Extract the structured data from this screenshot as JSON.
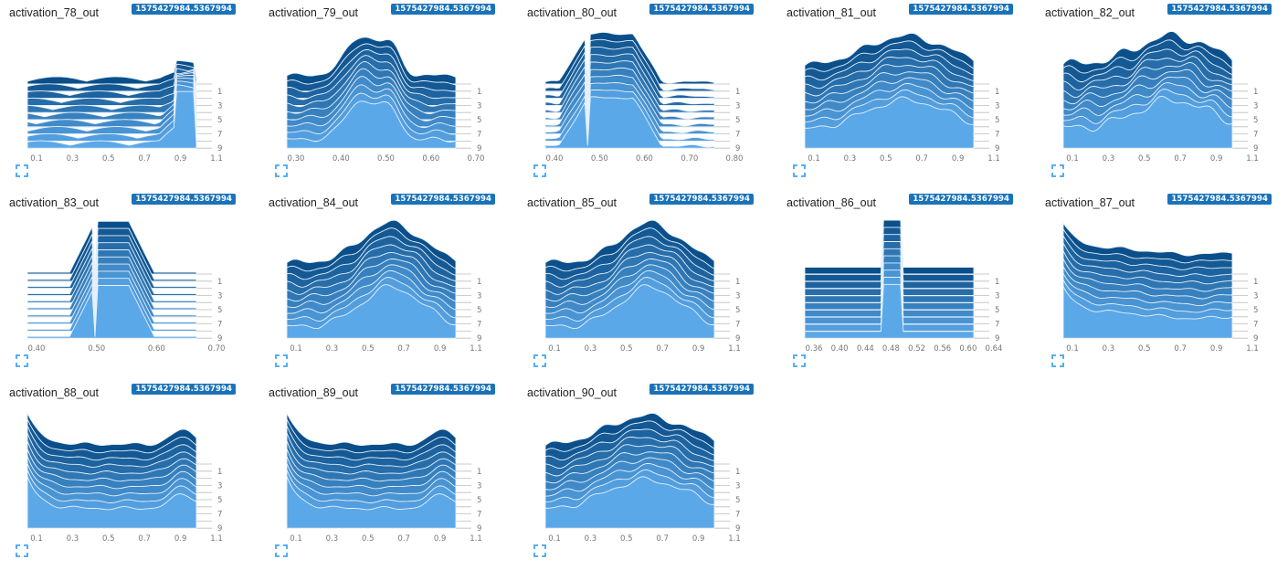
{
  "run_label": "1575427984.5367994",
  "colors": {
    "back": "#0b4f8a",
    "front": "#5ba8e8",
    "stroke": "#e6f0fa",
    "axis": "#9e9e9e",
    "badge": "#1a73b8",
    "expand_icon": "#42a5f5"
  },
  "depth_ticks": [
    "1",
    "3",
    "5",
    "7",
    "9"
  ],
  "icons": {
    "expand": "expand-icon"
  },
  "cards": [
    {
      "title": "activation_78_out",
      "xticks": [
        "0.1",
        "0.3",
        "0.5",
        "0.7",
        "0.9",
        "1.1"
      ],
      "chart_data": {
        "type": "area",
        "shape": "right-peak"
      }
    },
    {
      "title": "activation_79_out",
      "xticks": [
        "0.30",
        "0.40",
        "0.50",
        "0.60",
        "0.70"
      ],
      "chart_data": {
        "type": "area",
        "shape": "center-double"
      }
    },
    {
      "title": "activation_80_out",
      "xticks": [
        "0.40",
        "0.50",
        "0.60",
        "0.70",
        "0.80"
      ],
      "chart_data": {
        "type": "area",
        "shape": "plateau-left"
      }
    },
    {
      "title": "activation_81_out",
      "xticks": [
        "0.1",
        "0.3",
        "0.5",
        "0.7",
        "0.9",
        "1.1"
      ],
      "chart_data": {
        "type": "area",
        "shape": "broad-hump"
      }
    },
    {
      "title": "activation_82_out",
      "xticks": [
        "0.1",
        "0.3",
        "0.5",
        "0.7",
        "0.9",
        "1.1"
      ],
      "chart_data": {
        "type": "area",
        "shape": "noisy-hump"
      }
    },
    {
      "title": "activation_83_out",
      "xticks": [
        "0.40",
        "0.50",
        "0.60",
        "0.70"
      ],
      "chart_data": {
        "type": "area",
        "shape": "narrow-plateau"
      }
    },
    {
      "title": "activation_84_out",
      "xticks": [
        "0.1",
        "0.3",
        "0.5",
        "0.7",
        "0.9",
        "1.1"
      ],
      "chart_data": {
        "type": "area",
        "shape": "right-hump"
      }
    },
    {
      "title": "activation_85_out",
      "xticks": [
        "0.1",
        "0.3",
        "0.5",
        "0.7",
        "0.9",
        "1.1"
      ],
      "chart_data": {
        "type": "area",
        "shape": "right-hump"
      }
    },
    {
      "title": "activation_86_out",
      "xticks": [
        "0.36",
        "0.40",
        "0.44",
        "0.48",
        "0.52",
        "0.56",
        "0.60",
        "0.64"
      ],
      "chart_data": {
        "type": "area",
        "shape": "spike"
      }
    },
    {
      "title": "activation_87_out",
      "xticks": [
        "0.1",
        "0.3",
        "0.5",
        "0.7",
        "0.9",
        "1.1"
      ],
      "chart_data": {
        "type": "area",
        "shape": "left-decay"
      }
    },
    {
      "title": "activation_88_out",
      "xticks": [
        "0.1",
        "0.3",
        "0.5",
        "0.7",
        "0.9",
        "1.1"
      ],
      "chart_data": {
        "type": "area",
        "shape": "u-shape"
      }
    },
    {
      "title": "activation_89_out",
      "xticks": [
        "0.1",
        "0.3",
        "0.5",
        "0.7",
        "0.9",
        "1.1"
      ],
      "chart_data": {
        "type": "area",
        "shape": "u-shape"
      }
    },
    {
      "title": "activation_90_out",
      "xticks": [
        "0.1",
        "0.3",
        "0.5",
        "0.7",
        "0.9",
        "1.1"
      ],
      "chart_data": {
        "type": "area",
        "shape": "broad-hump"
      }
    }
  ]
}
